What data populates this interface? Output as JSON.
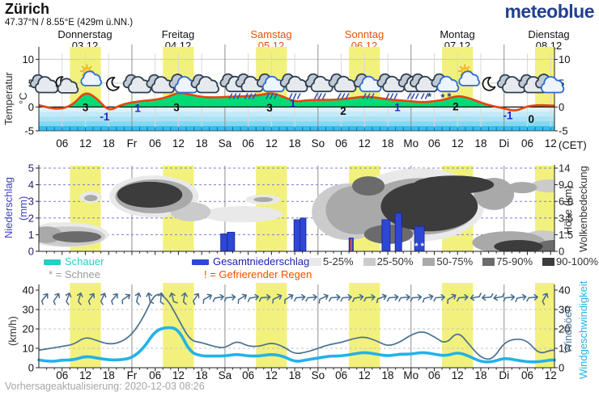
{
  "header": {
    "title": "Zürich",
    "subtitle": "47.37°N / 8.55°E (429m ü.NN.)",
    "logo": "meteoblue"
  },
  "days": [
    {
      "name": "Donnerstag",
      "date": "03.12",
      "highlight": false
    },
    {
      "name": "Freitag",
      "date": "04.12",
      "highlight": false
    },
    {
      "name": "Samstag",
      "date": "05.12",
      "highlight": true
    },
    {
      "name": "Sonntag",
      "date": "06.12",
      "highlight": true
    },
    {
      "name": "Montag",
      "date": "07.12",
      "highlight": false
    },
    {
      "name": "Dienstag",
      "date": "08.12",
      "highlight": false
    }
  ],
  "axis_titles": {
    "temp": "Temperatur",
    "temp_unit": "°C",
    "precip": "Niederschlag",
    "precip_unit": "(mm)",
    "height": "Höhe (km)",
    "cloud": "Wolkenbedeckung",
    "wind_unit": "(km/h)",
    "gusts": "Windböen",
    "speed": "Windgeschwindigkeit",
    "cet": "(CET)"
  },
  "legend": {
    "shower": {
      "label": "Schauer",
      "color": "#24cfc4"
    },
    "snow_note": "* = Schnee",
    "total": {
      "label": "Gesamtniederschlag",
      "color": "#2e46d4",
      "text_color": "#1d1db0"
    },
    "freezing_note": "! = Gefrierender Regen",
    "freezing_color": "#f05000",
    "cloud_levels": [
      {
        "label": "5-25%",
        "color": "#e9e9e9"
      },
      {
        "label": "25-50%",
        "color": "#cbcbcb"
      },
      {
        "label": "50-75%",
        "color": "#a9a9a9"
      },
      {
        "label": "75-90%",
        "color": "#6b6b6b"
      },
      {
        "label": "90-100%",
        "color": "#3c3c3c"
      }
    ]
  },
  "footer": {
    "update_text": "Vorhersageaktualisierung: 2020-12-03 08:26"
  },
  "colors": {
    "yellow_band": "#f2f17d",
    "temp_line": "#e8440f",
    "green_fill": "#00db77",
    "cold_bands": [
      "#daf2fb",
      "#c2eaf8",
      "#a8e2f6",
      "#86d8f2",
      "#2fc0ec"
    ],
    "bar": "#2e46d4",
    "bar_edge": "#16249c",
    "freezing": "#f05000",
    "gust_line": "#4a7290",
    "speed_line": "#22b2ea",
    "cloud_shades": [
      "#e9e9e9",
      "#cbcbcb",
      "#a9a9a9",
      "#6b6b6b",
      "#3c3c3c"
    ],
    "label_min": "#2525cc",
    "logo": "#23408f",
    "day_highlight": "#e8530e",
    "precip_tick_color": "#1f1f6e",
    "barb": "#44698c"
  },
  "chart_data": {
    "type": "meteogram",
    "sample_step_hours": 3,
    "hours_total": 133,
    "day_highlight_color": "#e8530e",
    "yellow_day_band_hours": [
      8,
      16
    ],
    "x_ticks": [
      [
        6,
        "06"
      ],
      [
        12,
        "12"
      ],
      [
        18,
        "18"
      ],
      [
        24,
        "Fr"
      ],
      [
        30,
        "06"
      ],
      [
        36,
        "12"
      ],
      [
        42,
        "18"
      ],
      [
        48,
        "Sa"
      ],
      [
        54,
        "06"
      ],
      [
        60,
        "12"
      ],
      [
        66,
        "18"
      ],
      [
        72,
        "So"
      ],
      [
        78,
        "06"
      ],
      [
        84,
        "12"
      ],
      [
        90,
        "18"
      ],
      [
        96,
        "Mo"
      ],
      [
        102,
        "06"
      ],
      [
        108,
        "12"
      ],
      [
        114,
        "18"
      ],
      [
        120,
        "Di"
      ],
      [
        126,
        "06"
      ],
      [
        132,
        "12"
      ]
    ],
    "temperature": {
      "ylim": [
        -5,
        11
      ],
      "y_ticks": [
        [
          10,
          "10"
        ],
        [
          5,
          "5"
        ],
        [
          0,
          "0"
        ],
        [
          -5,
          "-5"
        ]
      ],
      "values_c": [
        0.4,
        -0.3,
        -0.4,
        0.6,
        3.3,
        1.8,
        -0.9,
        0.4,
        1.0,
        1.3,
        1.5,
        2.0,
        3.1,
        2.6,
        2.1,
        2.0,
        2.1,
        2.2,
        2.3,
        2.5,
        3.0,
        2.2,
        1.1,
        1.4,
        1.5,
        1.5,
        1.6,
        1.9,
        2.2,
        2.0,
        1.6,
        1.4,
        1.2,
        1.0,
        1.2,
        1.6,
        2.4,
        1.9,
        0.9,
        0.2,
        -0.3,
        -0.9,
        0.2,
        0.4,
        0.3
      ],
      "point_labels": [
        [
          12,
          "3",
          "k",
          -0.85
        ],
        [
          17,
          "-1",
          "m",
          -2.8
        ],
        [
          25.5,
          "1",
          "m",
          -1.0
        ],
        [
          35.5,
          "3",
          "k",
          -0.85
        ],
        [
          59.5,
          "3",
          "k",
          -0.95
        ],
        [
          65.5,
          "1",
          "m",
          0.0
        ],
        [
          78.5,
          "2",
          "k",
          -1.6
        ],
        [
          92.5,
          "1",
          "m",
          -0.9
        ],
        [
          107.5,
          "2",
          "k",
          -0.7
        ],
        [
          121,
          "-1",
          "m",
          -2.6
        ],
        [
          127,
          "0",
          "k",
          -3.3
        ]
      ],
      "weather_icons": [
        [
          1.5,
          "cloud"
        ],
        [
          7,
          "moon-cloud"
        ],
        [
          13,
          "sun-cloud"
        ],
        [
          19,
          "moon"
        ],
        [
          25.5,
          "cloud"
        ],
        [
          31.5,
          "cloud"
        ],
        [
          37.5,
          "cloud-blue"
        ],
        [
          43,
          "cloud"
        ],
        [
          50.5,
          "rain"
        ],
        [
          54.5,
          "rain"
        ],
        [
          60,
          "rain-blue"
        ],
        [
          66,
          "rain"
        ],
        [
          72.5,
          "rain"
        ],
        [
          78.5,
          "rain"
        ],
        [
          85,
          "rain-blue"
        ],
        [
          91,
          "rain"
        ],
        [
          96.5,
          "rain"
        ],
        [
          99.5,
          "rain-snow"
        ],
        [
          105,
          "snow"
        ],
        [
          110.5,
          "sun-cloud"
        ],
        [
          116,
          "moon"
        ],
        [
          122,
          "cloud"
        ],
        [
          127.5,
          "cloud"
        ],
        [
          132,
          "cloud-blue"
        ]
      ]
    },
    "precipitation": {
      "ylim": [
        0,
        5
      ],
      "y_ticks_left": [
        [
          5,
          "5"
        ],
        [
          4,
          "4"
        ],
        [
          3,
          "3"
        ],
        [
          2,
          "2"
        ],
        [
          1,
          "1"
        ],
        [
          0,
          "0"
        ]
      ],
      "y_ticks_right": [
        [
          5,
          "14"
        ],
        [
          4,
          "9.0"
        ],
        [
          3,
          "6.0"
        ],
        [
          2,
          "3.5"
        ],
        [
          1,
          "1.5"
        ],
        [
          0,
          "0"
        ]
      ],
      "bars_mm": [
        [
          46.9,
          1.7,
          1.05,
          ""
        ],
        [
          48.6,
          1.9,
          1.15,
          ""
        ],
        [
          65.8,
          1.6,
          1.9,
          ""
        ],
        [
          67.4,
          1.5,
          2.0,
          ""
        ],
        [
          80.0,
          1.1,
          0.8,
          "freezing"
        ],
        [
          88.5,
          2.1,
          1.9,
          ""
        ],
        [
          91.9,
          1.7,
          2.3,
          ""
        ],
        [
          96.9,
          2.5,
          1.5,
          "snow"
        ]
      ],
      "cloud_cover_blobs": [
        [
          7,
          1.0,
          11,
          0.75,
          1
        ],
        [
          4.6,
          1.26,
          5.2,
          0.49,
          1
        ],
        [
          7.7,
          0.9,
          9.4,
          0.6,
          2
        ],
        [
          2,
          1.0,
          4,
          0.5,
          3
        ],
        [
          9.8,
          0.87,
          6.3,
          0.34,
          4
        ],
        [
          13.4,
          3.25,
          2.9,
          0.34,
          1
        ],
        [
          13.4,
          3.2,
          1.7,
          0.19,
          3
        ],
        [
          29.7,
          3.3,
          11.5,
          1.26,
          1
        ],
        [
          29.7,
          3.3,
          10,
          1.02,
          3
        ],
        [
          28.6,
          3.4,
          8.4,
          0.78,
          5
        ],
        [
          39.1,
          2.38,
          5.2,
          0.58,
          2
        ],
        [
          57.9,
          3.11,
          4.6,
          0.29,
          1
        ],
        [
          57.9,
          3.11,
          2.5,
          0.15,
          3
        ],
        [
          52.6,
          2.23,
          10.4,
          0.49,
          1
        ],
        [
          79.8,
          2.38,
          9.4,
          1.7,
          2
        ],
        [
          81.9,
          2.48,
          7.9,
          1.46,
          3
        ],
        [
          85,
          3.93,
          4.2,
          0.58,
          4
        ],
        [
          98,
          2.8,
          17,
          2.2,
          1
        ],
        [
          98.6,
          2.7,
          14.6,
          1.7,
          3
        ],
        [
          100.7,
          2.7,
          12.5,
          1.5,
          5
        ],
        [
          90.2,
          1.02,
          6.3,
          0.58,
          4
        ],
        [
          107,
          4.0,
          10.4,
          0.55,
          5
        ],
        [
          117.4,
          3.45,
          5.2,
          0.97,
          3
        ],
        [
          121.2,
          0.53,
          9.4,
          0.68,
          3
        ],
        [
          123.7,
          0.29,
          6.3,
          0.39,
          5
        ],
        [
          132,
          3.93,
          5.2,
          0.39,
          2
        ],
        [
          124.7,
          3.83,
          3.8,
          0.34,
          3
        ],
        [
          130,
          0.53,
          6.3,
          0.73,
          2
        ],
        [
          132.8,
          0.1,
          5.2,
          0.58,
          4
        ]
      ]
    },
    "wind": {
      "ylim": [
        0,
        40
      ],
      "y_ticks": [
        [
          40,
          "40"
        ],
        [
          30,
          "30"
        ],
        [
          20,
          "20"
        ],
        [
          10,
          "10"
        ],
        [
          0,
          "0"
        ]
      ],
      "gusts_kmh": [
        9,
        10,
        11,
        12,
        16,
        14,
        12,
        13,
        17,
        26,
        39,
        36,
        25,
        14,
        13,
        11,
        10,
        14,
        11,
        11,
        13,
        11,
        7,
        8,
        10,
        12,
        13,
        15,
        16,
        14,
        11,
        13,
        17,
        19,
        16,
        12,
        19,
        12,
        5,
        4,
        13,
        15,
        14,
        7,
        9
      ],
      "speed_kmh": [
        4,
        3,
        4,
        4,
        6,
        5,
        4,
        4,
        5,
        10,
        19,
        21,
        20,
        8,
        6,
        6,
        6,
        7,
        6,
        6,
        7,
        6,
        3,
        4,
        5,
        6,
        6,
        7,
        8,
        7,
        6,
        7,
        7,
        8,
        7,
        6,
        8,
        6,
        3,
        3,
        5,
        4,
        3,
        3,
        4
      ],
      "barb_directions_deg": [
        40,
        35,
        20,
        15,
        35,
        25,
        40,
        55,
        15,
        -10,
        5,
        -15,
        10,
        35,
        60,
        80,
        85,
        60,
        80,
        85,
        65,
        60,
        85,
        85,
        65,
        85,
        85,
        80,
        85,
        70,
        85,
        85,
        85,
        75,
        85,
        60,
        85,
        260,
        265,
        260,
        85,
        80,
        85,
        30,
        275
      ]
    }
  }
}
